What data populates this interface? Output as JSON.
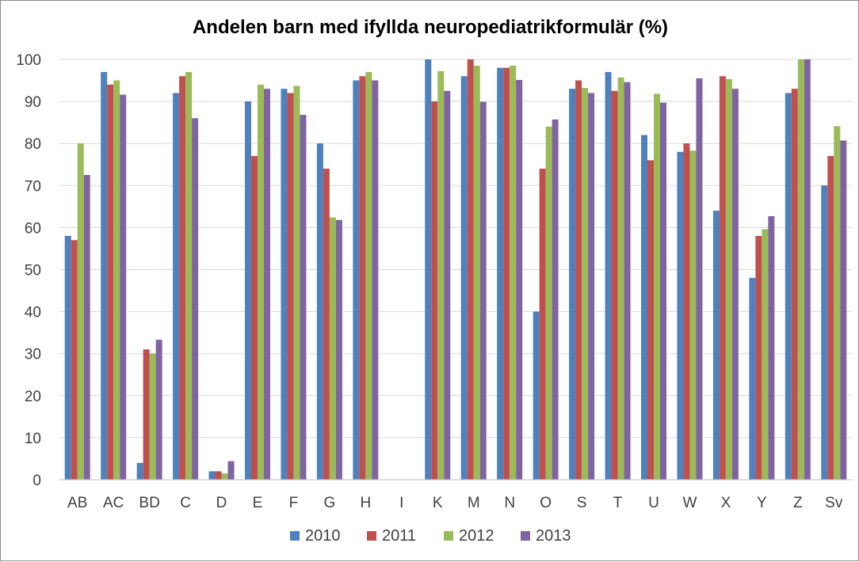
{
  "chart_data": {
    "type": "bar",
    "title": "Andelen barn med ifyllda neuropediatrikformulär (%)",
    "xlabel": "",
    "ylabel": "",
    "ylim": [
      0,
      100
    ],
    "yticks": [
      "0",
      "10",
      "20",
      "30",
      "40",
      "50",
      "60",
      "70",
      "80",
      "90",
      "100"
    ],
    "grid": true,
    "legend_position": "bottom",
    "categories": [
      "AB",
      "AC",
      "BD",
      "C",
      "D",
      "E",
      "F",
      "G",
      "H",
      "I",
      "K",
      "M",
      "N",
      "O",
      "S",
      "T",
      "U",
      "W",
      "X",
      "Y",
      "Z",
      "Sv"
    ],
    "series": [
      {
        "name": "2010",
        "color": "#4f81bd",
        "values": [
          58,
          97,
          4,
          92,
          2,
          90,
          93,
          80,
          95,
          0,
          100,
          96,
          98,
          40,
          93,
          97,
          82,
          78,
          64,
          48,
          92,
          70
        ]
      },
      {
        "name": "2011",
        "color": "#c0504d",
        "values": [
          57,
          94,
          31,
          96,
          2,
          77,
          92,
          74,
          96,
          0,
          90,
          100,
          98,
          74,
          95,
          92.5,
          76,
          80,
          96,
          58,
          93,
          77
        ]
      },
      {
        "name": "2012",
        "color": "#9bbb59",
        "values": [
          80,
          95,
          30,
          97,
          1.5,
          94,
          93.7,
          62.4,
          97,
          0,
          97.2,
          98.5,
          98.5,
          84,
          93.2,
          95.7,
          91.8,
          78.3,
          95.3,
          59.6,
          100,
          84.1
        ]
      },
      {
        "name": "2013",
        "color": "#8064a2",
        "values": [
          72.5,
          91.6,
          33.3,
          86,
          4.4,
          93,
          86.8,
          61.8,
          95,
          0,
          92.5,
          89.9,
          95.1,
          85.7,
          92,
          94.6,
          89.7,
          95.5,
          93,
          62.7,
          100,
          80.7
        ]
      }
    ]
  }
}
